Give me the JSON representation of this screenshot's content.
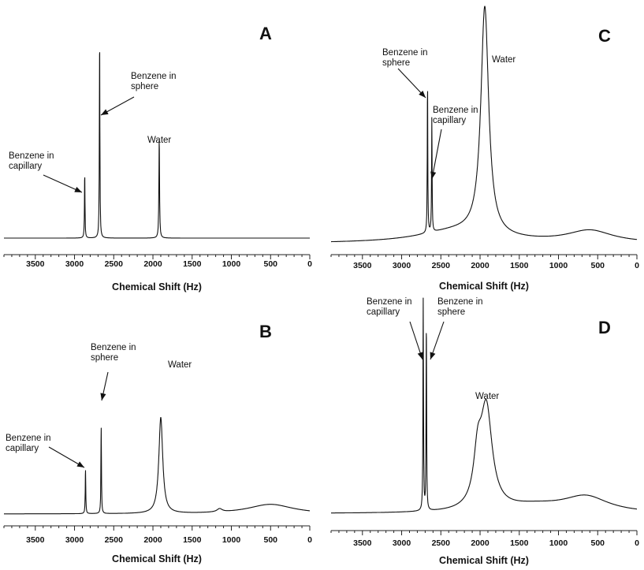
{
  "figure": {
    "x_unit": "Hz",
    "x_ticks": [
      3500,
      3000,
      2500,
      2000,
      1500,
      1000,
      500,
      0
    ]
  },
  "chart_data": [
    {
      "type": "line",
      "panel": "A",
      "title": "",
      "xlabel": "Chemical Shift (Hz)",
      "ylabel": "",
      "xlim": [
        3900,
        0
      ],
      "x_reversed": true,
      "grid": false,
      "baseline": 0.0,
      "broad": [],
      "peaks": [
        {
          "x": 2870,
          "height": 0.32,
          "width": 4
        },
        {
          "x": 2680,
          "height": 1.0,
          "width": 4
        },
        {
          "x": 1920,
          "height": 0.49,
          "width": 5
        }
      ],
      "annotations": [
        {
          "label": [
            "Benzene in",
            "capillary"
          ],
          "points_to": 2870
        },
        {
          "label": [
            "Benzene in",
            "sphere"
          ],
          "points_to": 2680
        },
        {
          "label": [
            "Water"
          ],
          "points_to": 1920
        }
      ]
    },
    {
      "type": "line",
      "panel": "B",
      "title": "",
      "xlabel": "Chemical Shift (Hz)",
      "ylabel": "",
      "xlim": [
        3900,
        0
      ],
      "x_reversed": true,
      "grid": false,
      "baseline": 0.02,
      "broad": [
        {
          "x": 1900,
          "height": 0.6,
          "width": 30
        },
        {
          "x": 500,
          "height": 0.06,
          "width": 350
        },
        {
          "x": 1150,
          "height": 0.02,
          "width": 40
        }
      ],
      "peaks": [
        {
          "x": 2860,
          "height": 0.28,
          "width": 4
        },
        {
          "x": 2660,
          "height": 0.55,
          "width": 4
        }
      ],
      "clipped_at": 0.8,
      "annotations": [
        {
          "label": [
            "Benzene in",
            "capillary"
          ],
          "points_to": 2860
        },
        {
          "label": [
            "Benzene in",
            "sphere"
          ],
          "points_to": 2660
        },
        {
          "label": [
            "Water"
          ],
          "points_to": 1900
        }
      ]
    },
    {
      "type": "line",
      "panel": "C",
      "title": "",
      "xlabel": "Chemical Shift (Hz)",
      "ylabel": "",
      "xlim": [
        3900,
        0
      ],
      "x_reversed": true,
      "grid": false,
      "baseline": 0.03,
      "broad": [
        {
          "x": 1940,
          "height": 0.95,
          "width": 60
        },
        {
          "x": 600,
          "height": 0.05,
          "width": 350
        },
        {
          "x": 2300,
          "height": 0.05,
          "width": 600
        }
      ],
      "peaks": [
        {
          "x": 2670,
          "height": 0.62,
          "width": 4
        },
        {
          "x": 2615,
          "height": 0.48,
          "width": 4
        }
      ],
      "annotations": [
        {
          "label": [
            "Benzene in",
            "sphere"
          ],
          "points_to": 2670
        },
        {
          "label": [
            "Benzene in",
            "capillary"
          ],
          "points_to": 2615
        },
        {
          "label": [
            "Water"
          ],
          "points_to": 1940
        }
      ]
    },
    {
      "type": "line",
      "panel": "D",
      "title": "",
      "xlabel": "Chemical Shift (Hz)",
      "ylabel": "",
      "xlim": [
        3900,
        0
      ],
      "x_reversed": true,
      "grid": false,
      "baseline": 0.03,
      "broad": [
        {
          "x": 1920,
          "height": 0.45,
          "width": 90
        },
        {
          "x": 2030,
          "height": 0.2,
          "width": 60
        },
        {
          "x": 650,
          "height": 0.07,
          "width": 350
        },
        {
          "x": 1300,
          "height": 0.03,
          "width": 500
        }
      ],
      "peaks": [
        {
          "x": 2725,
          "height": 0.95,
          "width": 4
        },
        {
          "x": 2685,
          "height": 0.85,
          "width": 4
        }
      ],
      "annotations": [
        {
          "label": [
            "Benzene in",
            "capillary"
          ],
          "points_to": 2725
        },
        {
          "label": [
            "Benzene in",
            "sphere"
          ],
          "points_to": 2685
        },
        {
          "label": [
            "Water"
          ],
          "points_to": 1920
        }
      ]
    }
  ]
}
